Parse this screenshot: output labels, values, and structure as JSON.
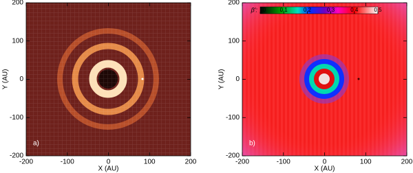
{
  "chart_data": [
    {
      "type": "image",
      "xlabel": "X (AU)",
      "ylabel": "Y (AU)",
      "panel_label": "a)",
      "xlim": [
        -200,
        200
      ],
      "ylim": [
        -200,
        200
      ],
      "xticks": [
        -200,
        -100,
        0,
        100,
        200
      ],
      "yticks": [
        -200,
        -100,
        0,
        100,
        200
      ]
    },
    {
      "type": "image",
      "xlabel": "X (AU)",
      "ylabel": "Y (AU)",
      "panel_label": "b)",
      "xlim": [
        -200,
        200
      ],
      "ylim": [
        -200,
        200
      ],
      "xticks": [
        -200,
        -100,
        0,
        100,
        200
      ],
      "yticks": [
        -200,
        -100,
        0,
        100,
        200
      ],
      "colorbar": {
        "label": "β′:",
        "lim": [
          0,
          0.5
        ],
        "ticks": [
          0,
          0.1,
          0.2,
          0.3,
          0.4,
          0.5
        ]
      }
    }
  ]
}
